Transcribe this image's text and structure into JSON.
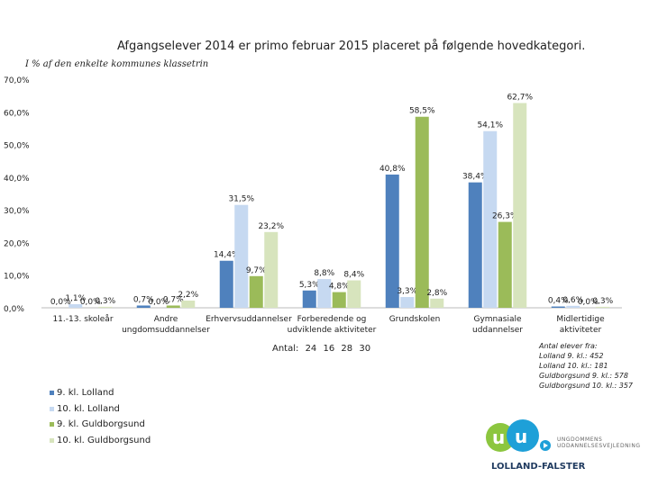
{
  "title": "Afgangselever 2014 er primo februar 2015 placeret på følgende hovedkategori.",
  "subtitle": "I % af den enkelte kommunes klassetrin",
  "chart_data": {
    "type": "bar",
    "categories": [
      [
        "11.-13. skoleår"
      ],
      [
        "Andre",
        "ungdomsuddannelser"
      ],
      [
        "Erhvervsuddannelser"
      ],
      [
        "Forberedende og",
        "udviklende aktiviteter"
      ],
      [
        "Grundskolen"
      ],
      [
        "Gymnasiale",
        "uddannelser"
      ],
      [
        "Midlertidige",
        "aktiviteter"
      ]
    ],
    "series": [
      {
        "name": "9. kl. Lolland",
        "color": "#4f81bd",
        "values": [
          0.0,
          0.7,
          14.4,
          5.3,
          40.8,
          38.4,
          0.4
        ]
      },
      {
        "name": "10. kl. Lolland",
        "color": "#c6d9f1",
        "values": [
          1.1,
          0.0,
          31.5,
          8.8,
          3.3,
          54.1,
          0.6
        ]
      },
      {
        "name": "9. kl. Guldborgsund",
        "color": "#9bbb59",
        "values": [
          0.0,
          0.7,
          9.7,
          4.8,
          58.5,
          26.3,
          0.0
        ]
      },
      {
        "name": "10. kl. Guldborgsund",
        "color": "#d7e4bd",
        "values": [
          0.3,
          2.2,
          23.2,
          8.4,
          2.8,
          62.7,
          0.3
        ]
      }
    ],
    "labels": [
      [
        "0,0%",
        "0,7%",
        "14,4%",
        "5,3%",
        "40,8%",
        "38,4%",
        "0,4%"
      ],
      [
        "1,1%",
        "0,0%",
        "31,5%",
        "8,8%",
        "3,3%",
        "54,1%",
        "0,6%"
      ],
      [
        "0,0%",
        "0,7%",
        "9,7%",
        "4,8%",
        "58,5%",
        "26,3%",
        "0,0%"
      ],
      [
        "0,3%",
        "2,2%",
        "23,2%",
        "8,4%",
        "2,8%",
        "62,7%",
        "0,3%"
      ]
    ],
    "yticks": [
      "0,0%",
      "10,0%",
      "20,0%",
      "30,0%",
      "40,0%",
      "50,0%",
      "60,0%",
      "70,0%"
    ],
    "ylim": [
      0,
      70
    ],
    "legend_position": "bottom-left"
  },
  "antal": {
    "label": "Antal:",
    "values": [
      "24",
      "16",
      "28",
      "30"
    ]
  },
  "notes": {
    "heading": "Antal elever fra:",
    "lines": [
      "Lolland 9. kl.: 452",
      "Lolland 10. kl.: 181",
      "Guldborgsund 9. kl.: 578",
      "Guldborgsund 10. kl.: 357"
    ]
  },
  "logo": {
    "line1": "UNGDOMMENS",
    "line2": "UDDANNELSESVEJLEDNING",
    "line3": "LOLLAND-FALSTER",
    "colors": {
      "blue": "#1ea0d8",
      "green": "#8cc63f",
      "navy": "#1f3a5f"
    }
  }
}
